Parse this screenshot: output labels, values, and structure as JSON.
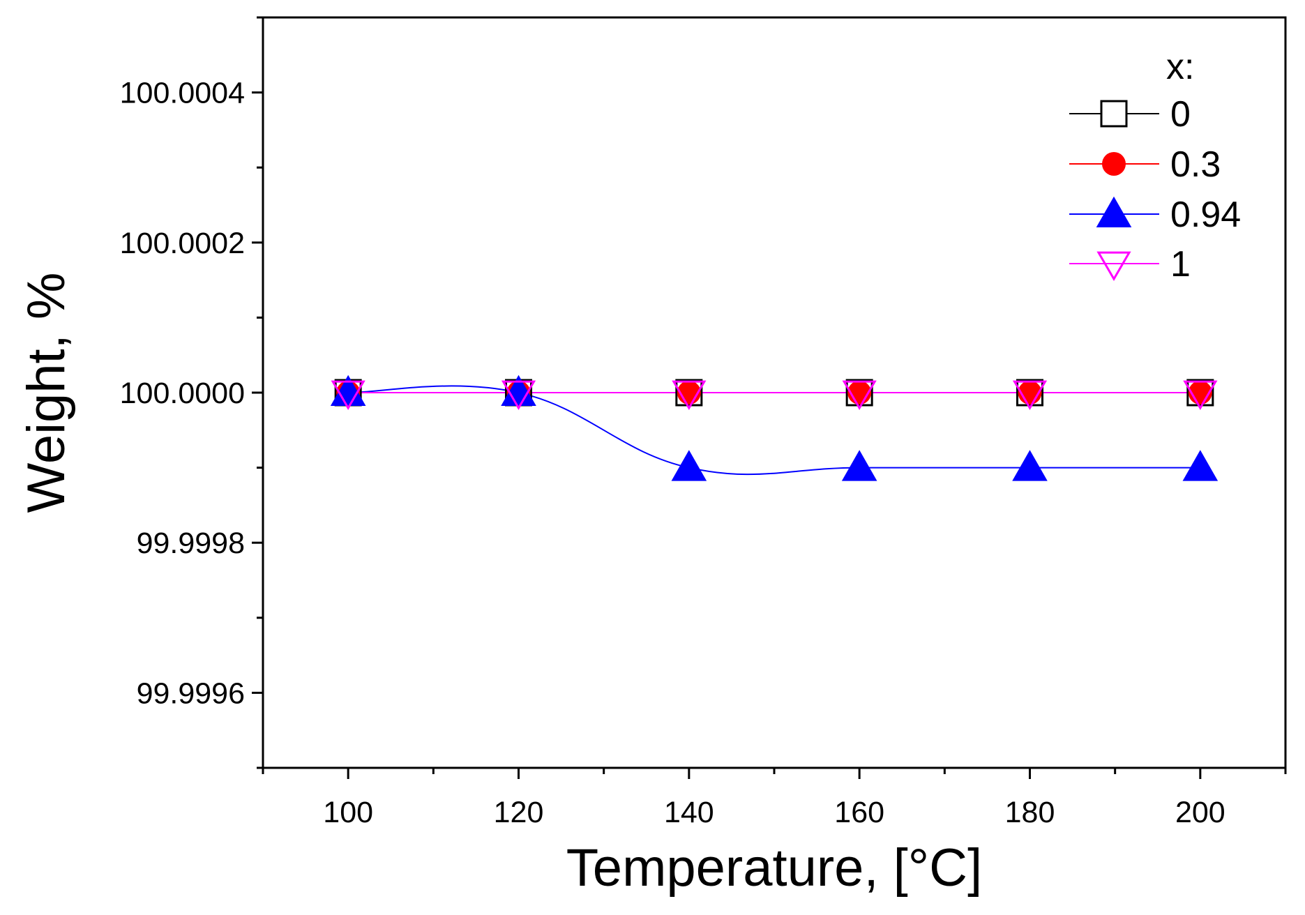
{
  "chart_data": {
    "type": "line",
    "title": "",
    "xlabel": "Temperature, [°C]",
    "ylabel": "Weight, %",
    "xlim": [
      90,
      210
    ],
    "ylim": [
      99.9995,
      100.0005
    ],
    "x_ticks": [
      100,
      120,
      140,
      160,
      180,
      200
    ],
    "x_tick_labels": [
      "100",
      "120",
      "140",
      "160",
      "180",
      "200"
    ],
    "y_ticks": [
      99.9996,
      99.9998,
      100.0,
      100.0002,
      100.0004
    ],
    "y_tick_labels": [
      "99.9996",
      "99.9998",
      "100.0000",
      "100.0002",
      "100.0004"
    ],
    "grid": false,
    "legend_title": "x:",
    "legend_position": "top-right",
    "x": [
      100,
      120,
      140,
      160,
      180,
      200
    ],
    "series": [
      {
        "name": "0",
        "values": [
          100.0,
          100.0,
          100.0,
          100.0,
          100.0,
          100.0
        ],
        "color": "#000000",
        "marker": "square-open"
      },
      {
        "name": "0.3",
        "values": [
          100.0,
          100.0,
          100.0,
          100.0,
          100.0,
          100.0
        ],
        "color": "#ff0000",
        "marker": "circle-filled"
      },
      {
        "name": "0.94",
        "values": [
          100.0,
          100.0,
          99.9999,
          99.9999,
          99.9999,
          99.9999
        ],
        "color": "#0000ff",
        "marker": "triangle-up-filled"
      },
      {
        "name": "1",
        "values": [
          100.0,
          100.0,
          100.0,
          100.0,
          100.0,
          100.0
        ],
        "color": "#ff00ff",
        "marker": "triangle-down-open"
      }
    ]
  }
}
